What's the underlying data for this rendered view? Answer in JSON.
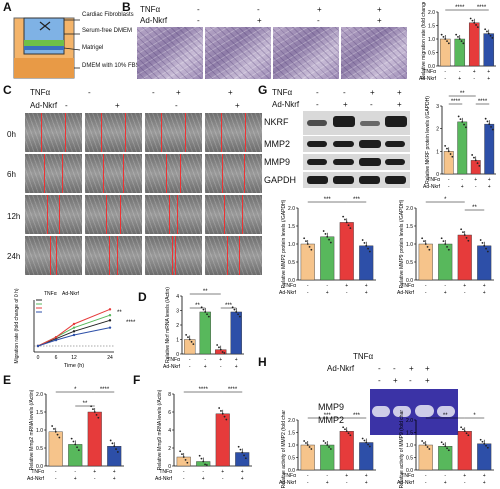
{
  "panels": {
    "A": {
      "label": "A",
      "legend": [
        "Cardiac Fibroblasts",
        "Serum-free DMEM",
        "Matrigel",
        "DMEM with 10% FBS"
      ]
    },
    "B": {
      "label": "B",
      "tnf_label": "TNFα",
      "nkrf_label": "Ad-Nkrf",
      "signs_tnf": [
        "-",
        "-",
        "+",
        "+"
      ],
      "signs_nkrf": [
        "-",
        "+",
        "-",
        "+"
      ]
    },
    "C": {
      "label": "C",
      "tnf_label": "TNFα",
      "nkrf_label": "Ad-Nkrf",
      "signs_tnf": [
        "-",
        "-",
        "+",
        "+"
      ],
      "signs_nkrf": [
        "-",
        "+",
        "-",
        "+"
      ],
      "times": [
        "0h",
        "6h",
        "12h",
        "24h"
      ]
    },
    "D": {
      "label": "D"
    },
    "E": {
      "label": "E"
    },
    "F": {
      "label": "F"
    },
    "G": {
      "label": "G",
      "tnf_label": "TNFα",
      "nkrf_label": "Ad-Nkrf",
      "signs_tnf": [
        "-",
        "-",
        "+",
        "+"
      ],
      "signs_nkrf": [
        "-",
        "+",
        "-",
        "+"
      ],
      "proteins": [
        "NKRF",
        "MMP2",
        "MMP9",
        "GAPDH"
      ]
    },
    "H": {
      "label": "H",
      "tnf_label": "TNFα",
      "nkrf_label": "Ad-Nkrf",
      "signs_tnf": [
        "-",
        "-",
        "+",
        "+"
      ],
      "signs_nkrf": [
        "-",
        "+",
        "-",
        "+"
      ],
      "bands": [
        "MMP9",
        "MMP2"
      ]
    }
  },
  "colors": {
    "ctrl": "#f6c48b",
    "nkrf": "#58b85c",
    "tnf": "#e63b3b",
    "both": "#2d4fa8"
  },
  "sig": [
    "****",
    "****",
    "**",
    "****",
    "**",
    "***",
    "*",
    "****",
    "**",
    "***",
    "****",
    "****",
    "***",
    "***",
    "*",
    "**",
    "***",
    "***",
    "**",
    "*"
  ],
  "chart_data": [
    {
      "id": "B",
      "type": "bar",
      "ylabel": "Relative migration rate (fold change)",
      "ylim": [
        0,
        2
      ],
      "yticks": [
        "0.0",
        "0.5",
        "1.0",
        "1.5",
        "2.0"
      ],
      "series": [
        {
          "values": [
            1.0,
            1.0,
            1.6,
            1.2
          ]
        }
      ],
      "xrows": [
        [
          "TNFα",
          "-",
          "-",
          "+",
          "+"
        ],
        [
          "Ad-Nkrf",
          "-",
          "+",
          "-",
          "+"
        ]
      ]
    },
    {
      "id": "C",
      "type": "line",
      "ylabel": "Migration rate (fold change of 0 h)",
      "xlabel": "Time (h)",
      "x": [
        0,
        6,
        12,
        24
      ],
      "xticks": [
        "0",
        "6",
        "12",
        "24"
      ],
      "ylim": [
        0,
        0.6
      ],
      "legend_header": [
        "TNFα",
        "Ad-Nkrf"
      ],
      "series": [
        {
          "values": [
            0,
            0.1,
            0.2,
            0.35
          ]
        },
        {
          "values": [
            0,
            0.12,
            0.25,
            0.42
          ]
        },
        {
          "values": [
            0,
            0.12,
            0.3,
            0.5
          ]
        },
        {
          "values": [
            0,
            0.08,
            0.15,
            0.25
          ]
        }
      ]
    },
    {
      "id": "D",
      "type": "bar",
      "ylabel": "Relative Nkrf mRNA levels (/Actin)",
      "ylim": [
        0,
        4
      ],
      "yticks": [
        "0",
        "1",
        "2",
        "3",
        "4"
      ],
      "series": [
        {
          "values": [
            1.0,
            2.9,
            0.3,
            2.9
          ]
        }
      ],
      "xrows": [
        [
          "TNFα",
          "-",
          "-",
          "+",
          "+"
        ],
        [
          "Ad-Nkrf",
          "-",
          "+",
          "-",
          "+"
        ]
      ]
    },
    {
      "id": "E",
      "type": "bar",
      "ylabel": "Relative Mmp2 mRNA levels (/Actin)",
      "ylim": [
        0,
        2
      ],
      "yticks": [
        "0.0",
        "0.5",
        "1.0",
        "1.5",
        "2.0"
      ],
      "series": [
        {
          "values": [
            0.95,
            0.6,
            1.5,
            0.55
          ]
        }
      ],
      "xrows": [
        [
          "TNFα",
          "-",
          "-",
          "+",
          "+"
        ],
        [
          "Ad-Nkrf",
          "-",
          "+",
          "-",
          "+"
        ]
      ]
    },
    {
      "id": "F",
      "type": "bar",
      "ylabel": "Relative Mmp9 mRNA levels (/Actin)",
      "ylim": [
        0,
        8
      ],
      "yticks": [
        "0",
        "2",
        "4",
        "6",
        "8"
      ],
      "series": [
        {
          "values": [
            1.0,
            0.5,
            5.8,
            1.5
          ]
        }
      ],
      "xrows": [
        [
          "TNFα",
          "-",
          "-",
          "+",
          "+"
        ],
        [
          "Ad-Nkrf",
          "-",
          "+",
          "-",
          "+"
        ]
      ]
    },
    {
      "id": "G1",
      "type": "bar",
      "ylabel": "Relative NKRF protein levels (/GAPDH)",
      "ylim": [
        0,
        3
      ],
      "yticks": [
        "0",
        "1",
        "2",
        "3"
      ],
      "series": [
        {
          "values": [
            1.0,
            2.3,
            0.6,
            2.2
          ]
        }
      ],
      "xrows": [
        [
          "TNFα",
          "-",
          "-",
          "+",
          "+"
        ],
        [
          "Ad-Nkrf",
          "-",
          "+",
          "-",
          "+"
        ]
      ]
    },
    {
      "id": "G2",
      "type": "bar",
      "ylabel": "Relative MMP2 protein levels (/GAPDH)",
      "ylim": [
        0,
        2
      ],
      "yticks": [
        "0.0",
        "0.5",
        "1.0",
        "1.5",
        "2.0"
      ],
      "series": [
        {
          "values": [
            1.0,
            1.2,
            1.6,
            0.95
          ]
        }
      ],
      "xrows": [
        [
          "TNFα",
          "-",
          "-",
          "+",
          "+"
        ],
        [
          "Ad-Nkrf",
          "-",
          "+",
          "-",
          "+"
        ]
      ]
    },
    {
      "id": "G3",
      "type": "bar",
      "ylabel": "Relative MMP9 protein levels (/GAPDH)",
      "ylim": [
        0,
        2
      ],
      "yticks": [
        "0.0",
        "0.5",
        "1.0",
        "1.5",
        "2.0"
      ],
      "series": [
        {
          "values": [
            1.0,
            1.0,
            1.25,
            0.95
          ]
        }
      ],
      "xrows": [
        [
          "TNFα",
          "-",
          "-",
          "+",
          "+"
        ],
        [
          "Ad-Nkrf",
          "-",
          "+",
          "-",
          "+"
        ]
      ]
    },
    {
      "id": "H1",
      "type": "bar",
      "ylabel": "Relative activity of MMP2 (fold change)",
      "ylim": [
        0,
        2
      ],
      "yticks": [
        "0.0",
        "0.5",
        "1.0",
        "1.5",
        "2.0"
      ],
      "series": [
        {
          "values": [
            1.0,
            1.0,
            1.55,
            1.1
          ]
        }
      ],
      "xrows": [
        [
          "TNFα",
          "-",
          "-",
          "+",
          "+"
        ],
        [
          "Ad-Nkrf",
          "-",
          "+",
          "-",
          "+"
        ]
      ]
    },
    {
      "id": "H2",
      "type": "bar",
      "ylabel": "Relative activity of MMP9 (fold change)",
      "ylim": [
        0,
        2
      ],
      "yticks": [
        "0.0",
        "0.5",
        "1.0",
        "1.5",
        "2.0"
      ],
      "series": [
        {
          "values": [
            1.0,
            0.95,
            1.55,
            1.05
          ]
        }
      ],
      "xrows": [
        [
          "TNFα",
          "-",
          "-",
          "+",
          "+"
        ],
        [
          "Ad-Nkrf",
          "-",
          "+",
          "-",
          "+"
        ]
      ]
    }
  ]
}
